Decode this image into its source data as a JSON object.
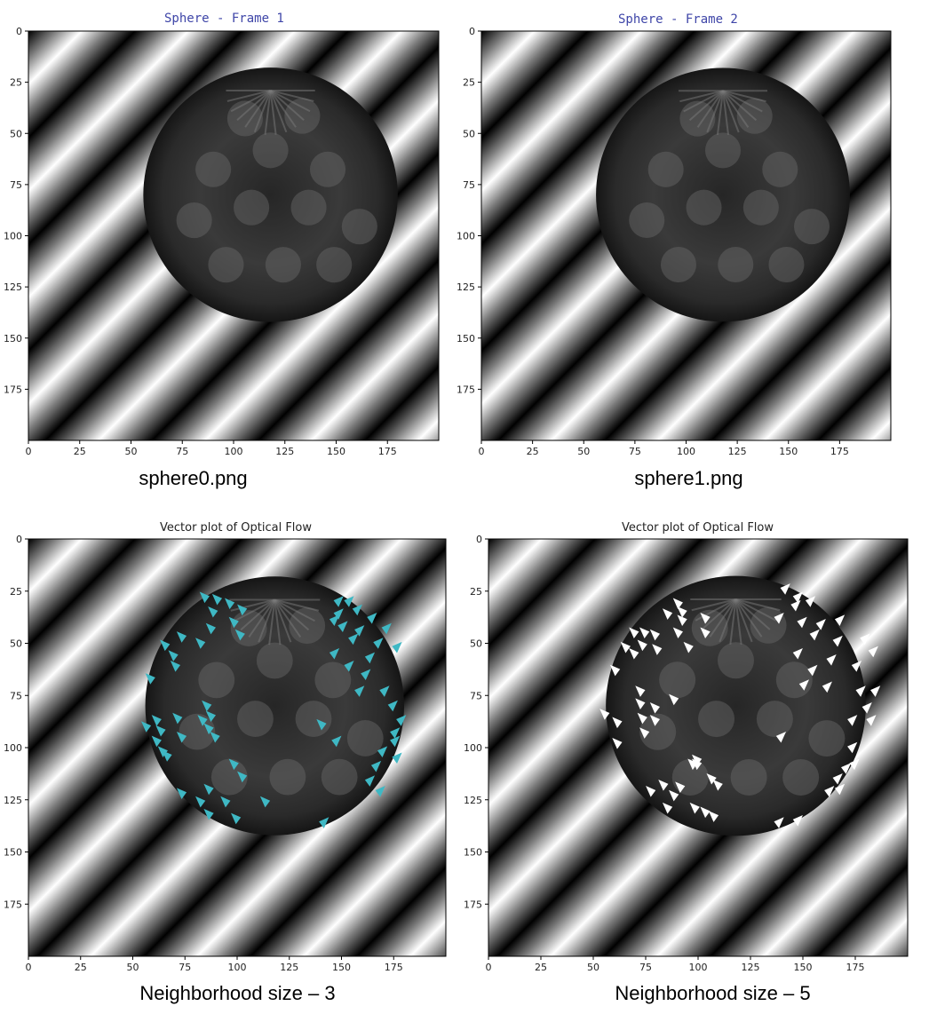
{
  "chart_data": [
    {
      "type": "image",
      "title": "Sphere - Frame 1",
      "title_style": "mono-blue",
      "caption": "sphere0.png",
      "xlim": [
        0,
        200
      ],
      "ylim": [
        200,
        0
      ],
      "xticks": [
        0,
        25,
        50,
        75,
        100,
        125,
        150,
        175
      ],
      "yticks": [
        0,
        25,
        50,
        75,
        100,
        125,
        150,
        175
      ],
      "image": {
        "sphere_center": [
          118,
          80
        ],
        "sphere_radius": 62
      },
      "arrows": [],
      "arrow_color": ""
    },
    {
      "type": "image",
      "title": "Sphere - Frame 2",
      "title_style": "mono-blue",
      "caption": "sphere1.png",
      "xlim": [
        0,
        200
      ],
      "ylim": [
        200,
        0
      ],
      "xticks": [
        0,
        25,
        50,
        75,
        100,
        125,
        150,
        175
      ],
      "yticks": [
        0,
        25,
        50,
        75,
        100,
        125,
        150,
        175
      ],
      "image": {
        "sphere_center": [
          118,
          80
        ],
        "sphere_radius": 62
      },
      "arrows": [],
      "arrow_color": ""
    },
    {
      "type": "quiver",
      "title": "Vector plot of Optical Flow",
      "title_style": "plain",
      "caption": "Neighborhood size – 3",
      "xlim": [
        0,
        200
      ],
      "ylim": [
        200,
        0
      ],
      "xticks": [
        0,
        25,
        50,
        75,
        100,
        125,
        150,
        175
      ],
      "yticks": [
        0,
        25,
        50,
        75,
        100,
        125,
        150,
        175
      ],
      "image": {
        "sphere_center": [
          118,
          80
        ],
        "sphere_radius": 62
      },
      "arrow_color": "#3fb8c4",
      "arrows": [
        [
          85,
          28,
          -1
        ],
        [
          91,
          29,
          -1
        ],
        [
          97,
          31,
          -1
        ],
        [
          103,
          34,
          -1
        ],
        [
          89,
          35,
          -1
        ],
        [
          88,
          43,
          -1
        ],
        [
          99,
          40,
          -1
        ],
        [
          102,
          46,
          -1
        ],
        [
          83,
          50,
          -1
        ],
        [
          74,
          47,
          -1
        ],
        [
          66,
          51,
          -1
        ],
        [
          70,
          56,
          -1
        ],
        [
          71,
          61,
          -1
        ],
        [
          59,
          67,
          -1
        ],
        [
          148,
          30,
          1
        ],
        [
          153,
          30,
          1
        ],
        [
          148,
          36,
          1
        ],
        [
          157,
          34,
          1
        ],
        [
          164,
          38,
          1
        ],
        [
          171,
          43,
          1
        ],
        [
          146,
          39,
          1
        ],
        [
          150,
          42,
          1
        ],
        [
          158,
          44,
          1
        ],
        [
          155,
          48,
          1
        ],
        [
          167,
          50,
          1
        ],
        [
          176,
          52,
          1
        ],
        [
          146,
          55,
          1
        ],
        [
          163,
          57,
          1
        ],
        [
          153,
          61,
          1
        ],
        [
          161,
          65,
          1
        ],
        [
          158,
          73,
          1
        ],
        [
          170,
          73,
          1
        ],
        [
          174,
          80,
          1
        ],
        [
          178,
          87,
          1
        ],
        [
          141,
          89,
          -1
        ],
        [
          147,
          97,
          1
        ],
        [
          86,
          80,
          -1
        ],
        [
          88,
          85,
          -1
        ],
        [
          62,
          87,
          -1
        ],
        [
          72,
          86,
          -1
        ],
        [
          84,
          87,
          -1
        ],
        [
          57,
          90,
          -1
        ],
        [
          64,
          92,
          -1
        ],
        [
          87,
          91,
          -1
        ],
        [
          90,
          95,
          -1
        ],
        [
          62,
          97,
          -1
        ],
        [
          74,
          95,
          -1
        ],
        [
          65,
          102,
          -1
        ],
        [
          67,
          104,
          -1
        ],
        [
          175,
          93,
          1
        ],
        [
          175,
          97,
          1
        ],
        [
          169,
          102,
          1
        ],
        [
          176,
          105,
          1
        ],
        [
          99,
          108,
          -1
        ],
        [
          103,
          114,
          -1
        ],
        [
          166,
          109,
          1
        ],
        [
          163,
          116,
          1
        ],
        [
          168,
          121,
          1
        ],
        [
          74,
          122,
          -1
        ],
        [
          87,
          120,
          -1
        ],
        [
          83,
          126,
          -1
        ],
        [
          95,
          126,
          -1
        ],
        [
          114,
          126,
          -1
        ],
        [
          87,
          132,
          -1
        ],
        [
          100,
          134,
          -1
        ],
        [
          141,
          136,
          1
        ]
      ]
    },
    {
      "type": "quiver",
      "title": "Vector plot of Optical Flow",
      "title_style": "plain",
      "caption": "Neighborhood size – 5",
      "xlim": [
        0,
        200
      ],
      "ylim": [
        200,
        0
      ],
      "xticks": [
        0,
        25,
        50,
        75,
        100,
        125,
        150,
        175
      ],
      "yticks": [
        0,
        25,
        50,
        75,
        100,
        125,
        150,
        175
      ],
      "image": {
        "sphere_center": [
          118,
          80
        ],
        "sphere_radius": 62
      },
      "arrow_color": "#ffffff",
      "arrows": [
        [
          141,
          24,
          1
        ],
        [
          147,
          28,
          1
        ],
        [
          146,
          32,
          1
        ],
        [
          153,
          30,
          1
        ],
        [
          138,
          38,
          1
        ],
        [
          149,
          40,
          1
        ],
        [
          158,
          41,
          1
        ],
        [
          167,
          39,
          1
        ],
        [
          155,
          46,
          1
        ],
        [
          166,
          49,
          1
        ],
        [
          179,
          48,
          1
        ],
        [
          183,
          54,
          1
        ],
        [
          147,
          55,
          1
        ],
        [
          163,
          58,
          1
        ],
        [
          154,
          63,
          1
        ],
        [
          175,
          61,
          1
        ],
        [
          150,
          70,
          1
        ],
        [
          161,
          71,
          1
        ],
        [
          177,
          73,
          1
        ],
        [
          184,
          73,
          1
        ],
        [
          180,
          81,
          1
        ],
        [
          182,
          87,
          1
        ],
        [
          139,
          95,
          1
        ],
        [
          91,
          31,
          -1
        ],
        [
          93,
          35,
          -1
        ],
        [
          86,
          36,
          -1
        ],
        [
          93,
          39,
          -1
        ],
        [
          104,
          38,
          -1
        ],
        [
          70,
          45,
          -1
        ],
        [
          75,
          45,
          -1
        ],
        [
          80,
          46,
          -1
        ],
        [
          91,
          45,
          -1
        ],
        [
          104,
          45,
          -1
        ],
        [
          74,
          51,
          -1
        ],
        [
          81,
          53,
          -1
        ],
        [
          66,
          52,
          -1
        ],
        [
          96,
          52,
          -1
        ],
        [
          70,
          55,
          -1
        ],
        [
          61,
          63,
          -1
        ],
        [
          73,
          73,
          -1
        ],
        [
          80,
          81,
          -1
        ],
        [
          73,
          79,
          -1
        ],
        [
          89,
          77,
          -1
        ],
        [
          74,
          86,
          -1
        ],
        [
          80,
          87,
          -1
        ],
        [
          56,
          84,
          -1
        ],
        [
          62,
          88,
          -1
        ],
        [
          75,
          93,
          -1
        ],
        [
          62,
          98,
          -1
        ],
        [
          173,
          87,
          1
        ],
        [
          173,
          100,
          1
        ],
        [
          174,
          108,
          1
        ],
        [
          100,
          106,
          -1
        ],
        [
          98,
          108,
          -1
        ],
        [
          100,
          108,
          -1
        ],
        [
          107,
          115,
          -1
        ],
        [
          110,
          118,
          -1
        ],
        [
          84,
          118,
          -1
        ],
        [
          92,
          119,
          -1
        ],
        [
          78,
          121,
          -1
        ],
        [
          89,
          123,
          -1
        ],
        [
          170,
          110,
          1
        ],
        [
          166,
          115,
          1
        ],
        [
          167,
          120,
          1
        ],
        [
          162,
          121,
          1
        ],
        [
          86,
          129,
          -1
        ],
        [
          99,
          129,
          -1
        ],
        [
          104,
          131,
          -1
        ],
        [
          108,
          133,
          -1
        ],
        [
          138,
          136,
          1
        ],
        [
          147,
          135,
          1
        ]
      ]
    }
  ]
}
